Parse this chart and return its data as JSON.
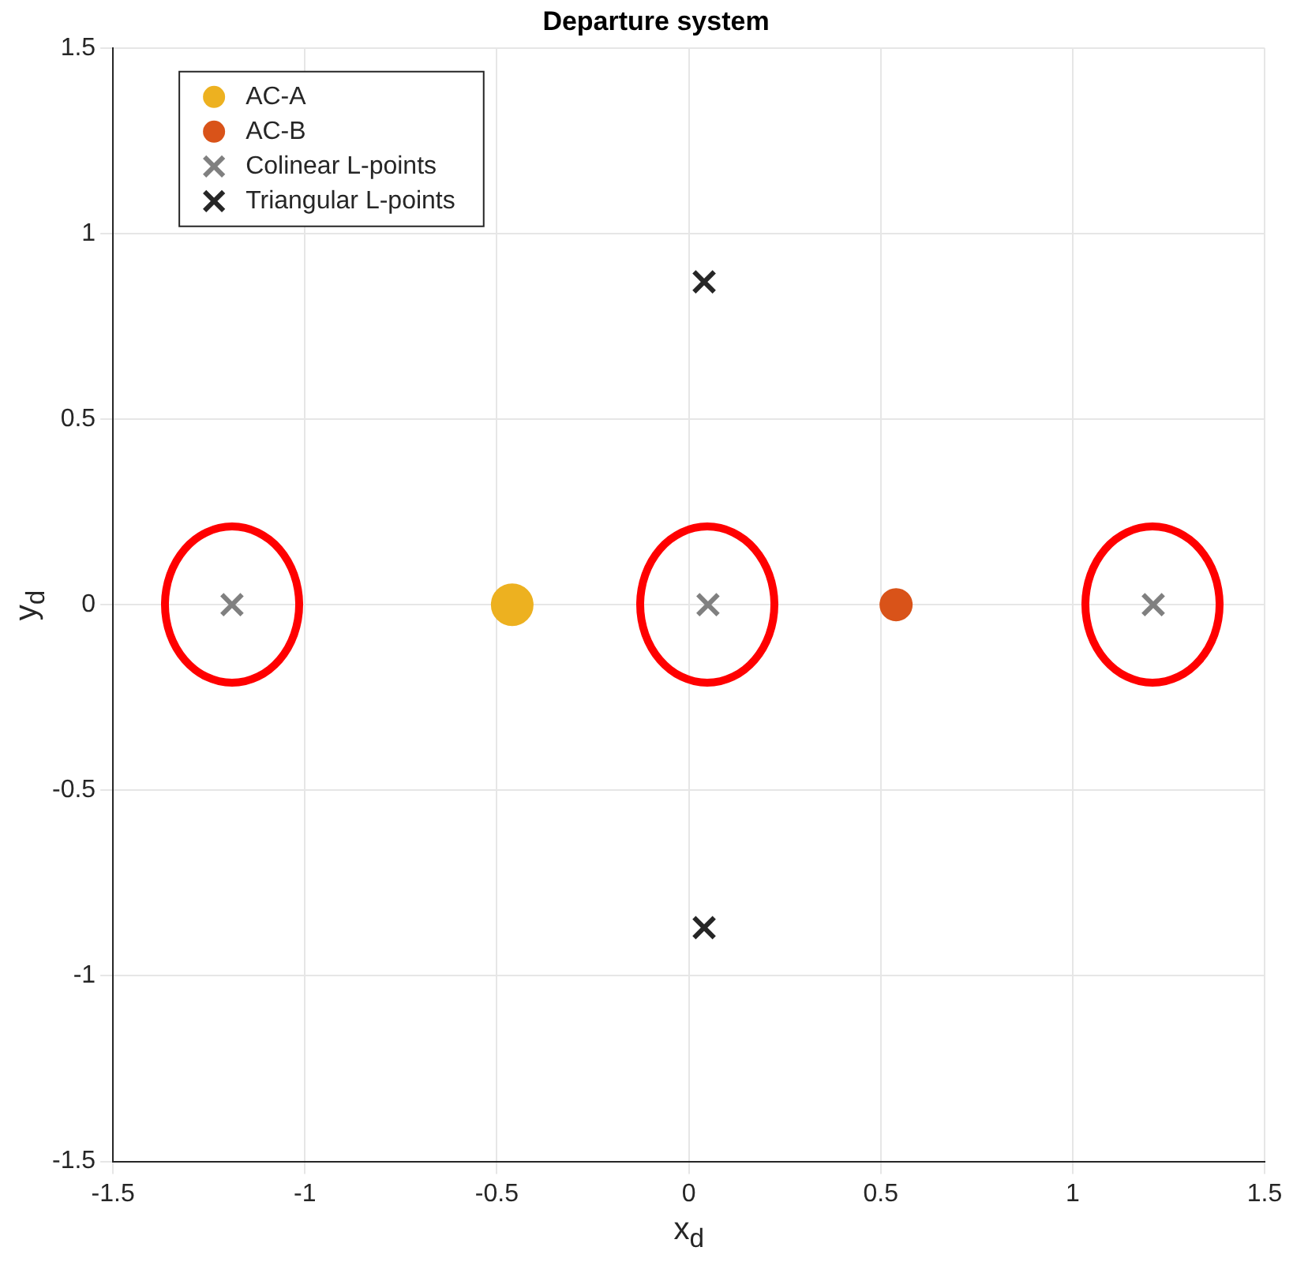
{
  "chart_data": {
    "type": "scatter",
    "title": "Departure system",
    "xlabel": "x$_{d}$",
    "ylabel": "y$_{d}$",
    "xlim": [
      -1.5,
      1.5
    ],
    "ylim": [
      -1.5,
      1.5
    ],
    "xticks": [
      -1.5,
      -1,
      -0.5,
      0,
      0.5,
      1,
      1.5
    ],
    "yticks": [
      -1.5,
      -1,
      -0.5,
      0,
      0.5,
      1,
      1.5
    ],
    "grid": true,
    "legend": "top left",
    "series": [
      {
        "name": "AC-A",
        "color": "#edb120",
        "marker": "circle",
        "x": [
          -0.46
        ],
        "values": [
          0
        ]
      },
      {
        "name": "AC-B",
        "color": "#d95319",
        "marker": "circle",
        "x": [
          0.54
        ],
        "values": [
          0
        ]
      },
      {
        "name": "Colinear L-points",
        "color": "#808080",
        "marker": "cross",
        "x": [
          -1.19,
          0.05,
          1.21
        ],
        "values": [
          0,
          0,
          0
        ]
      },
      {
        "name": "Triangular L-points",
        "color": "#262626",
        "marker": "cross",
        "x": [
          0.04,
          0.04
        ],
        "values": [
          0.87,
          -0.87
        ]
      }
    ]
  }
}
